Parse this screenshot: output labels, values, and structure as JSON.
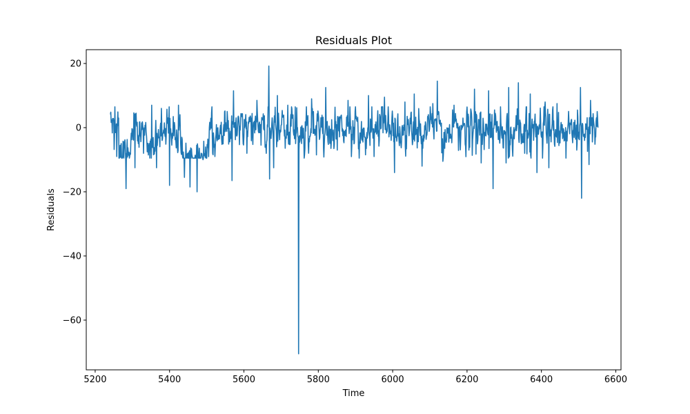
{
  "chart_data": {
    "type": "line",
    "title": "Residuals Plot",
    "xlabel": "Time",
    "ylabel": "Residuals",
    "xlim": [
      5176,
      6614
    ],
    "ylim": [
      -75.5,
      24.3
    ],
    "xticks": [
      5200,
      5400,
      5600,
      5800,
      6000,
      6200,
      6400,
      6600
    ],
    "xtick_labels": [
      "5200",
      "5400",
      "5600",
      "5800",
      "6000",
      "6200",
      "6400",
      "6600"
    ],
    "yticks": [
      -60,
      -40,
      -20,
      0,
      20
    ],
    "ytick_labels": [
      "−60",
      "−40",
      "−20",
      "0",
      "20"
    ],
    "grid": false,
    "series": [
      {
        "color": "#1f77b4",
        "x_start": 5241,
        "x_end": 6552,
        "spikes": [
          {
            "x": 5253,
            "y": 6.5
          },
          {
            "x": 5258,
            "y": -9.0
          },
          {
            "x": 5283,
            "y": -19.0
          },
          {
            "x": 5307,
            "y": -12.5
          },
          {
            "x": 5330,
            "y": -8.0
          },
          {
            "x": 5352,
            "y": 7.0
          },
          {
            "x": 5365,
            "y": -12.5
          },
          {
            "x": 5378,
            "y": 6.0
          },
          {
            "x": 5400,
            "y": -18.0
          },
          {
            "x": 5424,
            "y": 7.0
          },
          {
            "x": 5440,
            "y": -15.5
          },
          {
            "x": 5455,
            "y": -18.5
          },
          {
            "x": 5474,
            "y": -20.0
          },
          {
            "x": 5490,
            "y": -10.0
          },
          {
            "x": 5522,
            "y": -9.0
          },
          {
            "x": 5548,
            "y": 5.0
          },
          {
            "x": 5568,
            "y": -16.5
          },
          {
            "x": 5572,
            "y": 11.5
          },
          {
            "x": 5608,
            "y": -8.0
          },
          {
            "x": 5635,
            "y": 8.5
          },
          {
            "x": 5660,
            "y": -8.0
          },
          {
            "x": 5667,
            "y": 19.2
          },
          {
            "x": 5669,
            "y": -16.0
          },
          {
            "x": 5680,
            "y": -12.5
          },
          {
            "x": 5690,
            "y": 10.0
          },
          {
            "x": 5718,
            "y": 7.0
          },
          {
            "x": 5738,
            "y": 6.5
          },
          {
            "x": 5747,
            "y": -70.5
          },
          {
            "x": 5782,
            "y": 9.0
          },
          {
            "x": 5795,
            "y": -8.5
          },
          {
            "x": 5820,
            "y": 12.5
          },
          {
            "x": 5851,
            "y": -7.0
          },
          {
            "x": 5880,
            "y": 8.5
          },
          {
            "x": 5910,
            "y": -9.5
          },
          {
            "x": 5935,
            "y": 10.0
          },
          {
            "x": 5950,
            "y": -9.0
          },
          {
            "x": 5978,
            "y": 9.5
          },
          {
            "x": 6005,
            "y": -14.0
          },
          {
            "x": 6033,
            "y": 8.0
          },
          {
            "x": 6058,
            "y": 10.5
          },
          {
            "x": 6079,
            "y": -12.0
          },
          {
            "x": 6108,
            "y": 7.5
          },
          {
            "x": 6120,
            "y": 14.5
          },
          {
            "x": 6135,
            "y": -10.5
          },
          {
            "x": 6165,
            "y": 7.0
          },
          {
            "x": 6205,
            "y": -7.0
          },
          {
            "x": 6220,
            "y": 12.0
          },
          {
            "x": 6238,
            "y": -11.0
          },
          {
            "x": 6258,
            "y": 11.5
          },
          {
            "x": 6270,
            "y": -19.0
          },
          {
            "x": 6290,
            "y": 6.5
          },
          {
            "x": 6305,
            "y": -11.0
          },
          {
            "x": 6312,
            "y": 12.5
          },
          {
            "x": 6338,
            "y": 14.0
          },
          {
            "x": 6355,
            "y": -8.0
          },
          {
            "x": 6370,
            "y": 10.5
          },
          {
            "x": 6388,
            "y": -14.0
          },
          {
            "x": 6410,
            "y": 8.0
          },
          {
            "x": 6420,
            "y": -12.5
          },
          {
            "x": 6442,
            "y": 7.5
          },
          {
            "x": 6466,
            "y": -9.5
          },
          {
            "x": 6495,
            "y": -7.0
          },
          {
            "x": 6505,
            "y": 12.5
          },
          {
            "x": 6508,
            "y": -22.0
          },
          {
            "x": 6528,
            "y": -11.5
          },
          {
            "x": 6532,
            "y": 8.5
          },
          {
            "x": 6545,
            "y": -3.0
          }
        ],
        "baseline_dips": [
          {
            "x0": 5265,
            "x1": 5295,
            "y": -4.0
          },
          {
            "x0": 5340,
            "x1": 5360,
            "y": -4.0
          },
          {
            "x0": 5430,
            "x1": 5500,
            "y": -5.0
          }
        ]
      }
    ]
  }
}
